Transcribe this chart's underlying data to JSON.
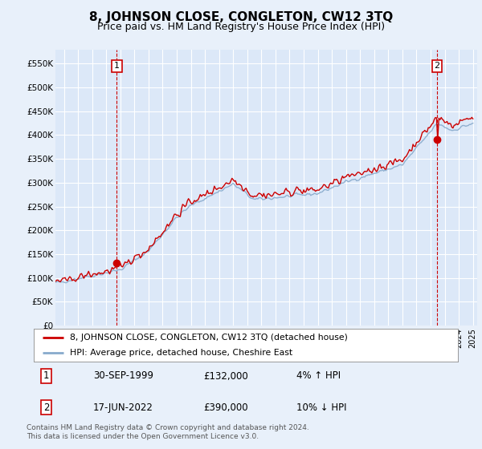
{
  "title": "8, JOHNSON CLOSE, CONGLETON, CW12 3TQ",
  "subtitle": "Price paid vs. HM Land Registry's House Price Index (HPI)",
  "title_fontsize": 11,
  "subtitle_fontsize": 9,
  "ylabel_ticks": [
    0,
    50000,
    100000,
    150000,
    200000,
    250000,
    300000,
    350000,
    400000,
    450000,
    500000,
    550000
  ],
  "ylabel_labels": [
    "£0",
    "£50K",
    "£100K",
    "£150K",
    "£200K",
    "£250K",
    "£300K",
    "£350K",
    "£400K",
    "£450K",
    "£500K",
    "£550K"
  ],
  "ylim": [
    0,
    580000
  ],
  "xlim_start": 1995.4,
  "xlim_end": 2025.3,
  "background_color": "#dce8f8",
  "plot_bg_color": "#dce8f8",
  "outer_bg_color": "#e8f0fa",
  "grid_color": "#ffffff",
  "line1_color": "#cc0000",
  "line2_color": "#88aacc",
  "transaction1_x": 1999.75,
  "transaction1_y": 132000,
  "transaction2_x": 2022.46,
  "transaction2_y": 390000,
  "footnote": "Contains HM Land Registry data © Crown copyright and database right 2024.\nThis data is licensed under the Open Government Licence v3.0.",
  "legend_line1": "8, JOHNSON CLOSE, CONGLETON, CW12 3TQ (detached house)",
  "legend_line2": "HPI: Average price, detached house, Cheshire East",
  "table_row1": [
    "1",
    "30-SEP-1999",
    "£132,000",
    "4% ↑ HPI"
  ],
  "table_row2": [
    "2",
    "17-JUN-2022",
    "£390,000",
    "10% ↓ HPI"
  ]
}
